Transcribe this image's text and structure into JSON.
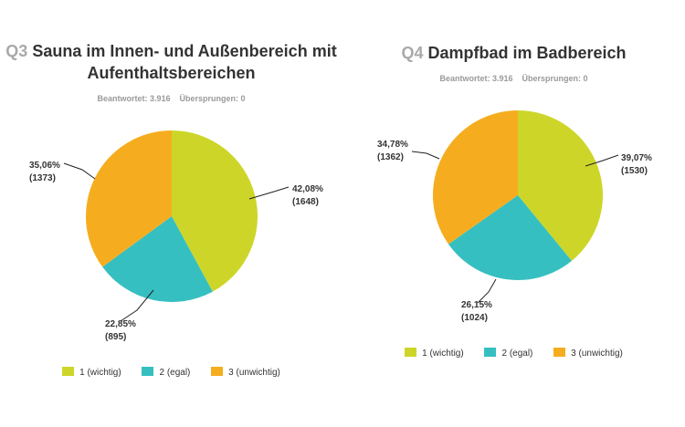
{
  "colors": {
    "c1": "#cdd628",
    "c2": "#36bfc0",
    "c3": "#f5ad1f"
  },
  "legend": [
    "1 (wichtig)",
    "2 (egal)",
    "3 (unwichtig)"
  ],
  "charts": [
    {
      "qnum": "Q3",
      "title_line1": "Sauna im Innen- und Außenbereich mit",
      "title_line2": "Aufenthaltsbereichen",
      "answered": "Beantwortet: 3.916",
      "skipped": "Übersprungen: 0",
      "labels": [
        {
          "pct": "42,08%",
          "count": "(1648)"
        },
        {
          "pct": "22,85%",
          "count": "(895)"
        },
        {
          "pct": "35,06%",
          "count": "(1373)"
        }
      ]
    },
    {
      "qnum": "Q4",
      "title_line1": "Dampfbad im Badbereich",
      "answered": "Beantwortet: 3.916",
      "skipped": "Übersprungen: 0",
      "labels": [
        {
          "pct": "39,07%",
          "count": "(1530)"
        },
        {
          "pct": "26,15%",
          "count": "(1024)"
        },
        {
          "pct": "34,78%",
          "count": "(1362)"
        }
      ]
    }
  ],
  "chart_data": [
    {
      "type": "pie",
      "title": "Q3 Sauna im Innen- und Außenbereich mit Aufenthaltsbereichen",
      "categories": [
        "1 (wichtig)",
        "2 (egal)",
        "3 (unwichtig)"
      ],
      "values": [
        42.08,
        22.85,
        35.06
      ],
      "counts": [
        1648,
        895,
        1373
      ],
      "legend": "bottom"
    },
    {
      "type": "pie",
      "title": "Q4 Dampfbad im Badbereich",
      "categories": [
        "1 (wichtig)",
        "2 (egal)",
        "3 (unwichtig)"
      ],
      "values": [
        39.07,
        26.15,
        34.78
      ],
      "counts": [
        1530,
        1024,
        1362
      ],
      "legend": "bottom"
    }
  ]
}
